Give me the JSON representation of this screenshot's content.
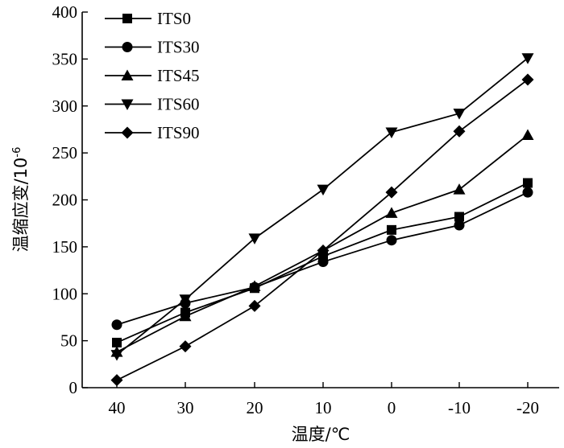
{
  "chart_data": {
    "type": "line",
    "categories": [
      "40",
      "30",
      "20",
      "10",
      "0",
      "-10",
      "-20"
    ],
    "xlabel": "温度/℃",
    "ylabel": "温缩应变/10",
    "ylabel_sup": "-6",
    "ylim": [
      0,
      400
    ],
    "yticks": [
      "0",
      "50",
      "100",
      "150",
      "200",
      "250",
      "300",
      "350",
      "400"
    ],
    "ytick_values": [
      0,
      50,
      100,
      150,
      200,
      250,
      300,
      350,
      400
    ],
    "legend_position": "top-left",
    "grid": false,
    "color": "#000000",
    "series": [
      {
        "name": "ITS0",
        "marker": "square",
        "values": [
          48,
          80,
          106,
          140,
          168,
          182,
          218
        ]
      },
      {
        "name": "ITS30",
        "marker": "circle",
        "values": [
          67,
          90,
          107,
          134,
          157,
          173,
          208
        ]
      },
      {
        "name": "ITS45",
        "marker": "triangle-up",
        "values": [
          38,
          76,
          108,
          146,
          186,
          211,
          269
        ]
      },
      {
        "name": "ITS60",
        "marker": "triangle-down",
        "values": [
          35,
          94,
          159,
          211,
          272,
          292,
          351
        ]
      },
      {
        "name": "ITS90",
        "marker": "diamond",
        "values": [
          8,
          44,
          87,
          146,
          208,
          273,
          328
        ]
      }
    ]
  }
}
